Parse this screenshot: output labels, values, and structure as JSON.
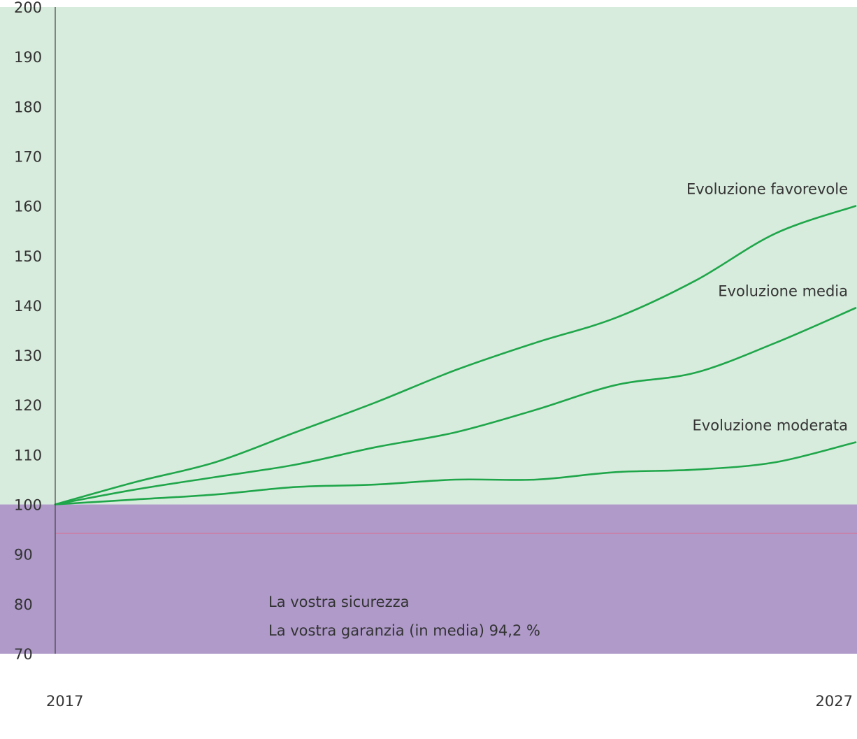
{
  "colors": {
    "plot_background": "#d8ecdd",
    "guarantee_band": "#af9ac9",
    "series_line": "#1fa64a",
    "guarantee_line": "#e06a8a",
    "axis": "#444444",
    "text": "#333333"
  },
  "band": {
    "line1": "La vostra sicurezza",
    "line2": "La vostra garanzia (in media) 94,2 %"
  },
  "chart_data": {
    "type": "line",
    "title": "",
    "xlabel": "",
    "ylabel": "",
    "xlim": [
      2017,
      2027
    ],
    "ylim": [
      70,
      200
    ],
    "x_ticks": [
      "2017",
      "2027"
    ],
    "y_ticks": [
      "200",
      "190",
      "180",
      "170",
      "160",
      "150",
      "140",
      "130",
      "120",
      "110",
      "100",
      "90",
      "80",
      "70"
    ],
    "grid": false,
    "guarantee_band": {
      "from": 70,
      "to": 100
    },
    "guarantee_line": 94.2,
    "x": [
      2017,
      2018,
      2019,
      2020,
      2021,
      2022,
      2023,
      2024,
      2025,
      2026,
      2027
    ],
    "series": [
      {
        "name": "Evoluzione favorevole",
        "values": [
          100,
          104.5,
          108.5,
          114.5,
          120.5,
          127,
          132.5,
          137.5,
          145,
          154.5,
          160
        ]
      },
      {
        "name": "Evoluzione media",
        "values": [
          100,
          103,
          105.5,
          108,
          111.5,
          114.5,
          119,
          124,
          126.5,
          132.5,
          139.5
        ]
      },
      {
        "name": "Evoluzione moderata",
        "values": [
          100,
          101,
          102,
          103.5,
          104,
          105,
          105,
          106.5,
          107,
          108.5,
          112.5
        ]
      }
    ]
  }
}
